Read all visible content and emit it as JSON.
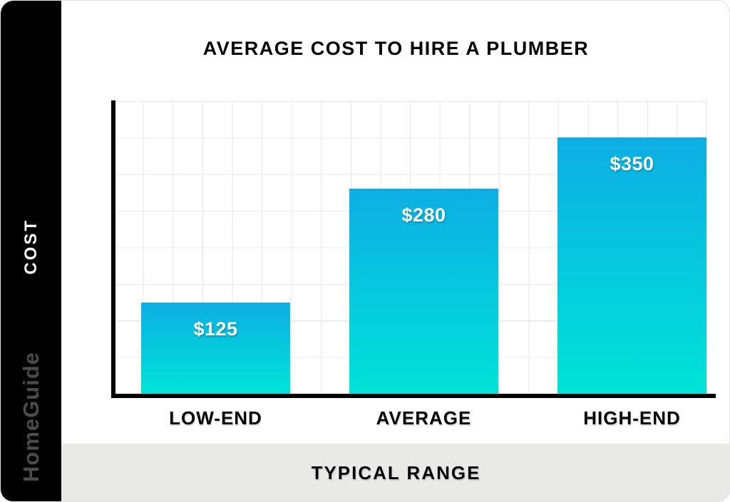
{
  "sidebar": {
    "ylabel": "COST",
    "brand": "HomeGuide"
  },
  "footer": {
    "xlabel": "TYPICAL RANGE"
  },
  "chart_data": {
    "type": "bar",
    "title": "AVERAGE COST TO HIRE A PLUMBER",
    "categories": [
      "LOW-END",
      "AVERAGE",
      "HIGH-END"
    ],
    "values": [
      125,
      280,
      350
    ],
    "value_labels": [
      "$125",
      "$280",
      "$350"
    ],
    "xlabel": "TYPICAL RANGE",
    "ylabel": "COST",
    "ylim": [
      0,
      400
    ],
    "grid": true,
    "y_grid_step": 50,
    "legend": false,
    "colors": {
      "bar_gradient_top": "#0CAEE3",
      "bar_gradient_bottom": "#00E3D8",
      "axis": "#000000",
      "gridline": "#E8E8E8",
      "sidebar_bg": "#000000",
      "sidebar_text": "#FFFFFF",
      "brand_text": "#4B4B4B",
      "footer_bg": "#E9E9E8",
      "value_label_text": "#FFFFFF"
    }
  }
}
